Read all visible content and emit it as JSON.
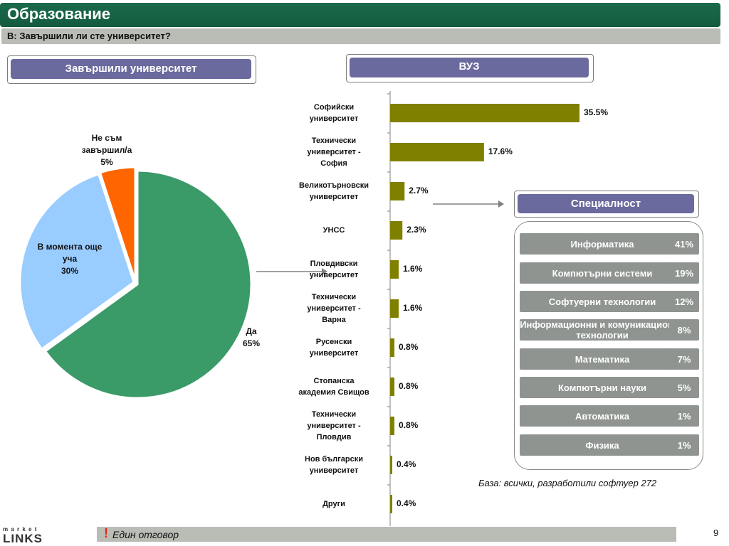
{
  "header": {
    "title": "Образование",
    "question": "В: Завършили ли сте университет?"
  },
  "panels": {
    "left_title": "Завършили университет",
    "mid_title": "ВУЗ",
    "right_title": "Специалност"
  },
  "chart_data": [
    {
      "type": "pie",
      "labels": [
        "Да",
        "В момента още уча",
        "Не съм завършил/а"
      ],
      "values": [
        65,
        30,
        5
      ],
      "label_lines": [
        [
          "Да",
          "65%"
        ],
        [
          "В момента още",
          "уча",
          "30%"
        ],
        [
          "Не съм",
          "завършил/а",
          "5%"
        ]
      ],
      "colors": [
        "#3a9a68",
        "#99ccff",
        "#ff6600"
      ]
    },
    {
      "type": "bar",
      "orientation": "horizontal",
      "categories": [
        [
          "Софийски",
          "университет"
        ],
        [
          "Технически",
          "университет -",
          "София"
        ],
        [
          "Великотърновски",
          "университет"
        ],
        [
          "УНСС"
        ],
        [
          "Пловдивски",
          "университет"
        ],
        [
          "Технически",
          "университет -",
          "Варна"
        ],
        [
          "Русенски",
          "университет"
        ],
        [
          "Стопанска",
          "академия Свищов"
        ],
        [
          "Технически",
          "университет -",
          "Пловдив"
        ],
        [
          "Нов български",
          "университет"
        ],
        [
          "Други"
        ]
      ],
      "values": [
        35.5,
        17.6,
        2.7,
        2.3,
        1.6,
        1.6,
        0.8,
        0.8,
        0.8,
        0.4,
        0.4
      ],
      "value_labels": [
        "35.5%",
        "17.6%",
        "2.7%",
        "2.3%",
        "1.6%",
        "1.6%",
        "0.8%",
        "0.8%",
        "0.8%",
        "0.4%",
        "0.4%"
      ],
      "color": "#808000"
    },
    {
      "type": "table",
      "rows": [
        {
          "label": "Информатика",
          "value": "41%"
        },
        {
          "label": "Компютърни системи",
          "value": "19%"
        },
        {
          "label": "Софтуерни технологии",
          "value": "12%"
        },
        {
          "label": "Информационни и комуникационни технологии",
          "value": "8%"
        },
        {
          "label": "Математика",
          "value": "7%"
        },
        {
          "label": "Компютърни науки",
          "value": "5%"
        },
        {
          "label": "Автоматика",
          "value": "1%"
        },
        {
          "label": "Физика",
          "value": "1%"
        }
      ]
    }
  ],
  "base_note": "База: всички, разработили софтуер 272",
  "footer": {
    "exclamation": "!",
    "note": "Един отговор",
    "page_number": "9",
    "logo_top": "m a r k e t",
    "logo_main": "LINKS"
  }
}
